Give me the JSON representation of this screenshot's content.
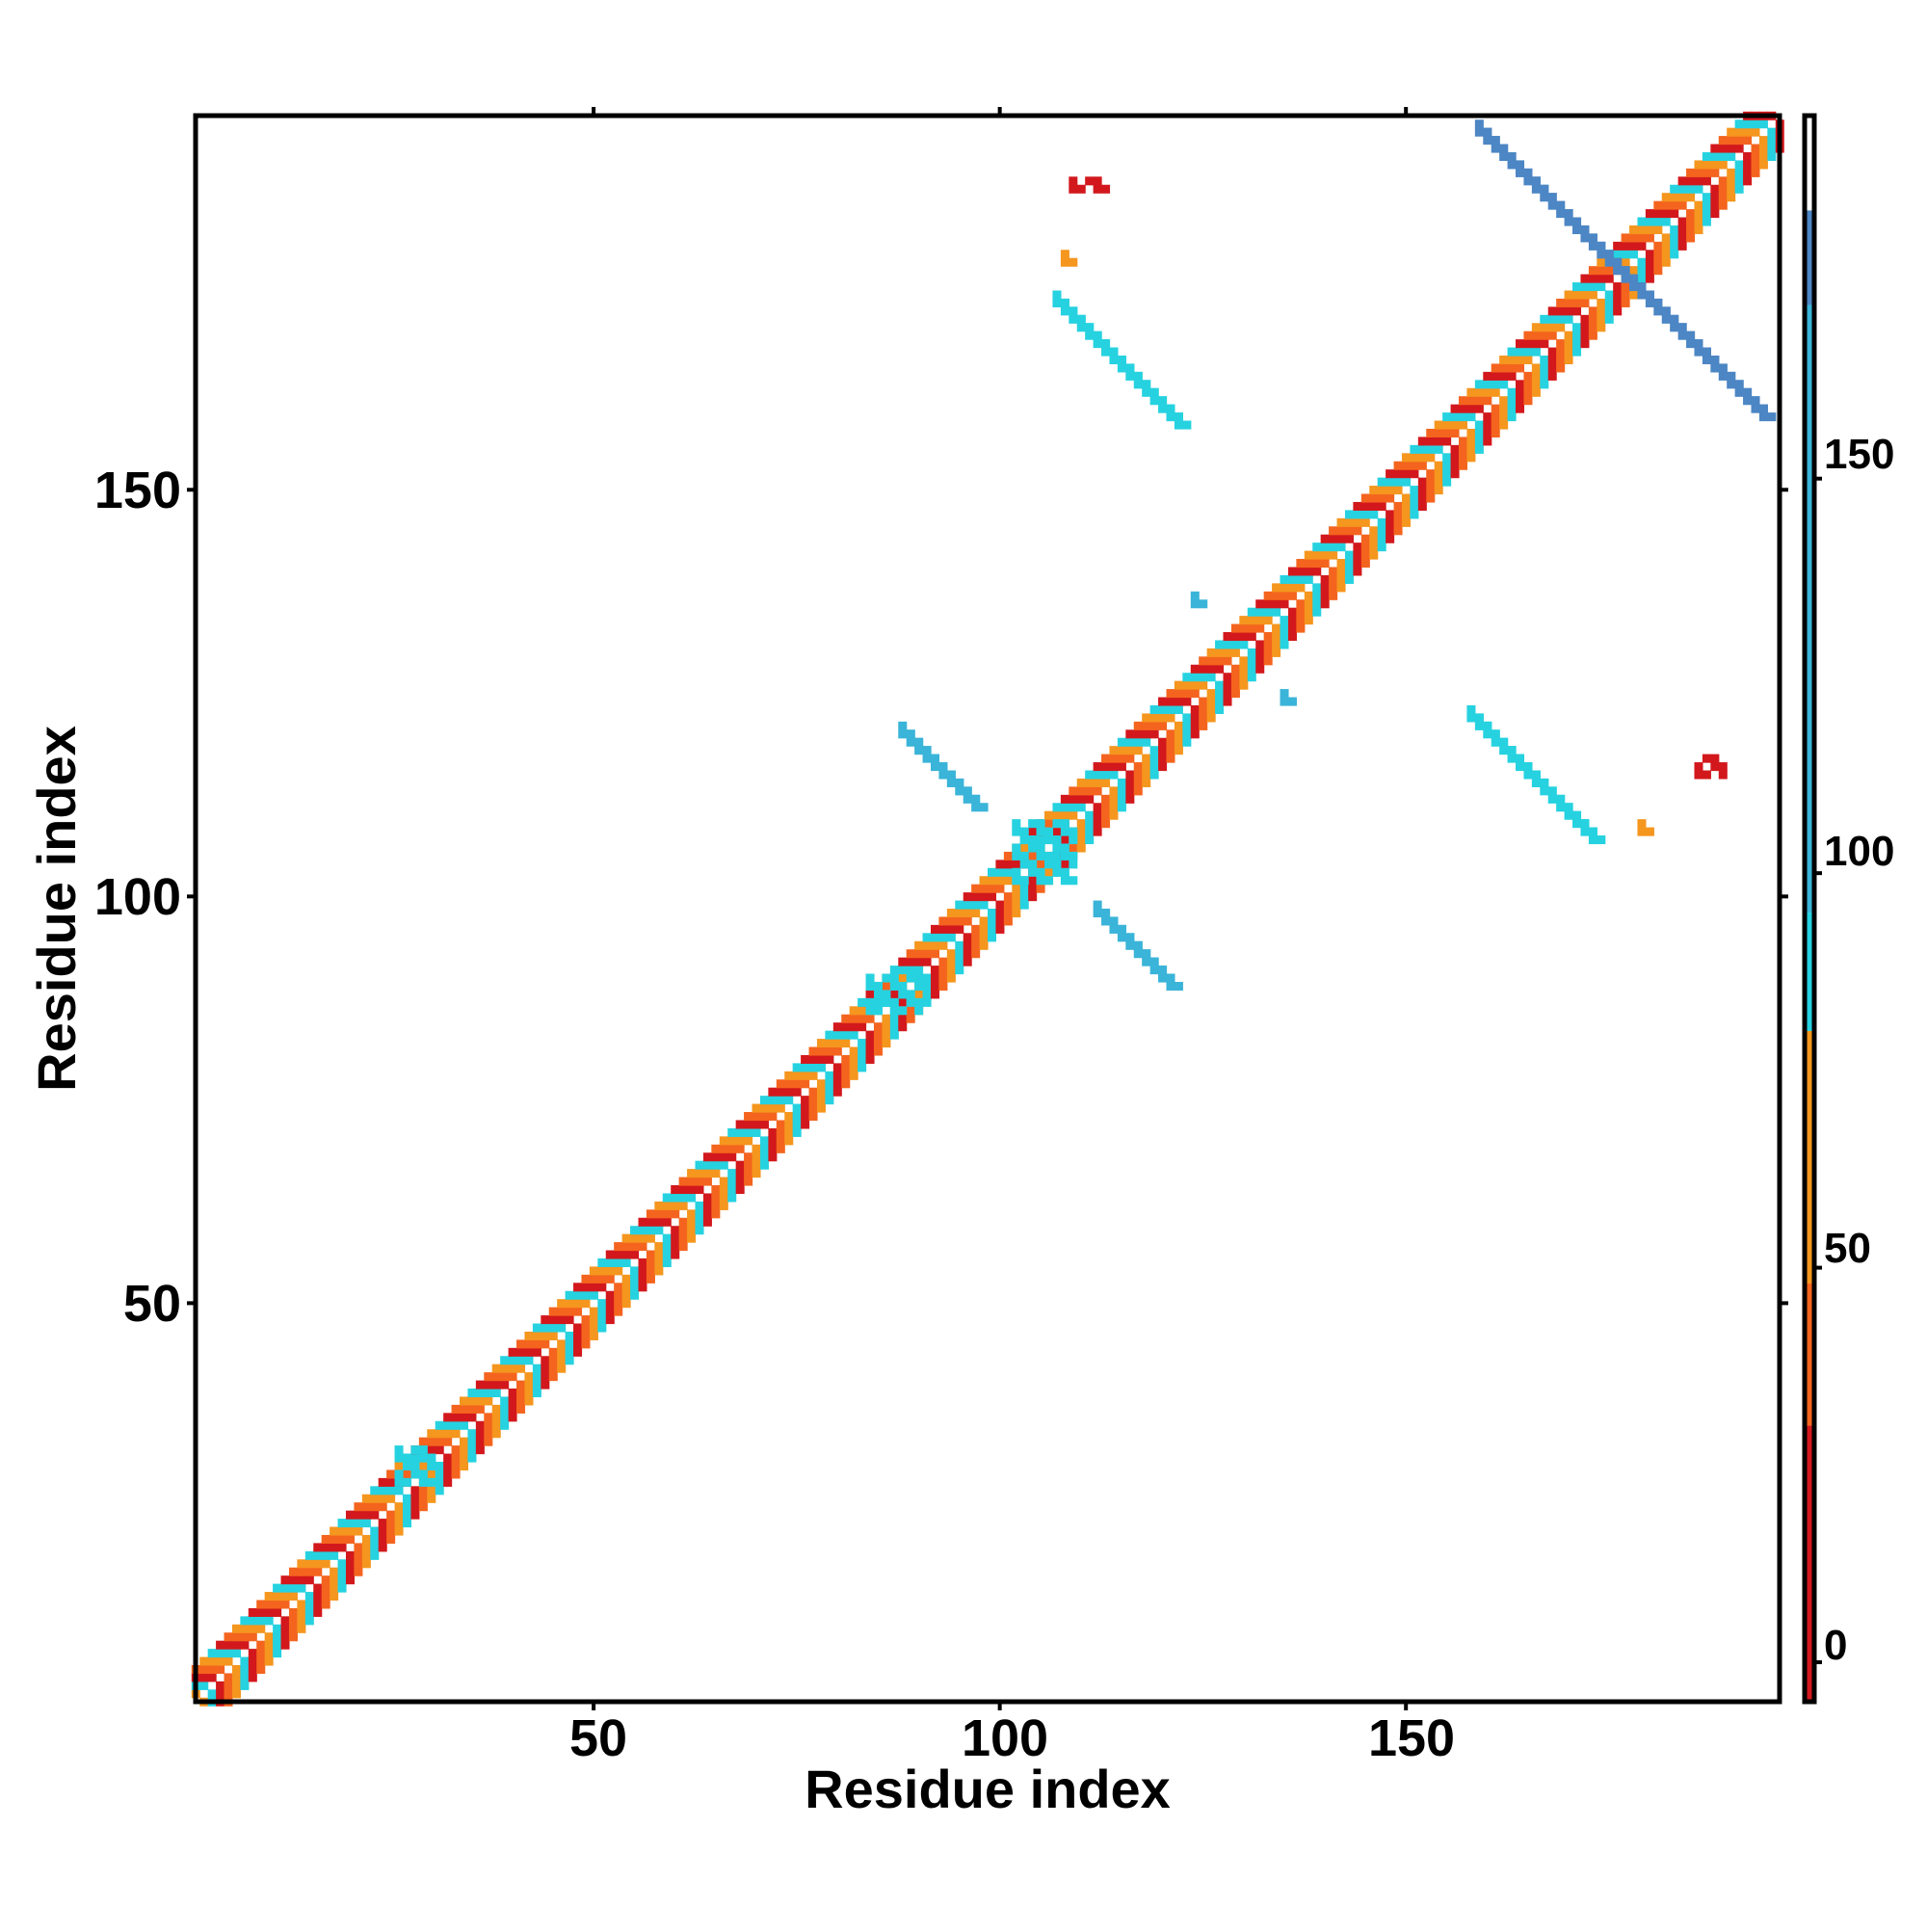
{
  "chart_data": {
    "type": "heatmap",
    "xlabel": "Residue index",
    "ylabel": "Residue index",
    "xlim": [
      1,
      196
    ],
    "ylim": [
      1,
      196
    ],
    "x_ticks": [
      "50",
      "100",
      "150"
    ],
    "y_ticks": [
      "50",
      "100",
      "150"
    ],
    "colorbar": {
      "range": [
        -5,
        184
      ],
      "ticks": [
        "0",
        "50",
        "100",
        "150"
      ],
      "stops": [
        {
          "from": -5,
          "to": 30,
          "color": "#d2181c"
        },
        {
          "from": 30,
          "to": 48,
          "color": "#f4641e"
        },
        {
          "from": 48,
          "to": 80,
          "color": "#f5961e"
        },
        {
          "from": 80,
          "to": 95,
          "color": "#26d2e0"
        },
        {
          "from": 95,
          "to": 172,
          "color": "#3ab4d8"
        },
        {
          "from": 172,
          "to": 184,
          "color": "#4c86c4"
        },
        {
          "from": 184,
          "to": 196,
          "color": "#ffffff"
        }
      ]
    },
    "grid": false,
    "contact_regions": [
      {
        "kind": "diagonal",
        "i_start": 1,
        "i_end": 196,
        "offset": 4,
        "color": "#f46a1e"
      },
      {
        "kind": "antiparallel",
        "x_start": 88,
        "y_start": 120,
        "x_end": 97,
        "y_end": 111,
        "color": "#3ab4d8"
      },
      {
        "kind": "antiparallel",
        "x_start": 112,
        "y_start": 98,
        "x_end": 121,
        "y_end": 89,
        "color": "#3ab4d8"
      },
      {
        "kind": "antiparallel",
        "x_start": 159,
        "y_start": 194,
        "x_end": 194,
        "y_end": 159,
        "color": "#4c86c4"
      },
      {
        "kind": "antiparallel",
        "x_start": 107,
        "y_start": 173,
        "x_end": 122,
        "y_end": 158,
        "color": "#26d2e0"
      },
      {
        "kind": "antiparallel",
        "x_start": 158,
        "y_start": 122,
        "x_end": 173,
        "y_end": 107,
        "color": "#26d2e0"
      },
      {
        "kind": "patch",
        "x": 102,
        "y": 102,
        "w": 8,
        "h": 8,
        "color": "#26d2e0"
      },
      {
        "kind": "patch",
        "x": 84,
        "y": 86,
        "w": 7,
        "h": 5,
        "color": "#26d2e0"
      },
      {
        "kind": "patch",
        "x": 26,
        "y": 28,
        "w": 5,
        "h": 5,
        "color": "#26d2e0"
      },
      {
        "kind": "patch",
        "x": 109,
        "y": 187,
        "w": 5,
        "h": 2,
        "color": "#d2181c"
      },
      {
        "kind": "patch",
        "x": 186,
        "y": 115,
        "w": 4,
        "h": 3,
        "color": "#d2181c"
      },
      {
        "kind": "patch",
        "x": 108,
        "y": 178,
        "w": 2,
        "h": 2,
        "color": "#f5961e"
      },
      {
        "kind": "patch",
        "x": 179,
        "y": 108,
        "w": 2,
        "h": 2,
        "color": "#f5961e"
      },
      {
        "kind": "patch",
        "x": 124,
        "y": 136,
        "w": 2,
        "h": 2,
        "color": "#3ab4d8"
      },
      {
        "kind": "patch",
        "x": 135,
        "y": 124,
        "w": 2,
        "h": 2,
        "color": "#3ab4d8"
      }
    ]
  }
}
